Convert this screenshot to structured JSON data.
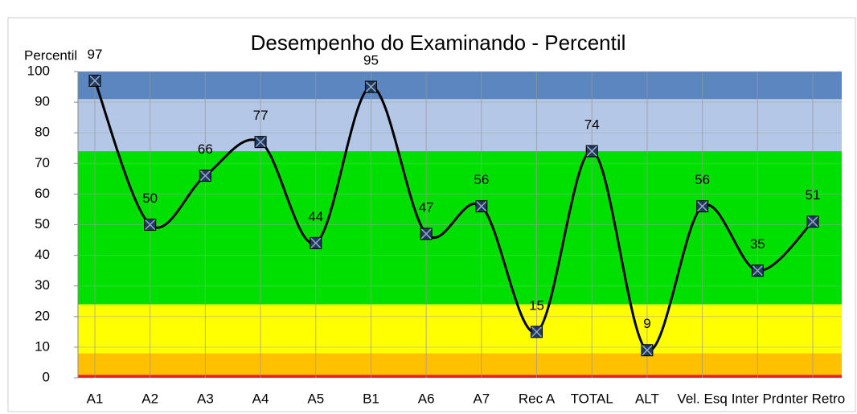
{
  "chart_data": {
    "type": "line",
    "title": "Desempenho do Examinando - Percentil",
    "y_label": "Percentil",
    "categories": [
      "A1",
      "A2",
      "A3",
      "A4",
      "A5",
      "B1",
      "A6",
      "A7",
      "Rec A",
      "TOTAL",
      "ALT",
      "Vel. Esq",
      "Inter Pro",
      "Inter Retro"
    ],
    "values": [
      97,
      50,
      66,
      77,
      44,
      95,
      47,
      56,
      15,
      74,
      9,
      56,
      35,
      51
    ],
    "color": "#000000",
    "marker_color": "#1f3864",
    "ylim": [
      0,
      100
    ],
    "yticks": [
      0,
      10,
      20,
      30,
      40,
      50,
      60,
      70,
      80,
      90,
      100
    ],
    "grid": true,
    "bands": [
      {
        "range": [
          0,
          1
        ],
        "color": "#e61e1e"
      },
      {
        "range": [
          1,
          8
        ],
        "color": "#ffc000"
      },
      {
        "range": [
          8,
          24
        ],
        "color": "#ffff00"
      },
      {
        "range": [
          24,
          74
        ],
        "color": "#00e000"
      },
      {
        "range": [
          74,
          91
        ],
        "color": "#b4c7e7"
      },
      {
        "range": [
          91,
          100
        ],
        "color": "#5b86c0"
      }
    ]
  }
}
